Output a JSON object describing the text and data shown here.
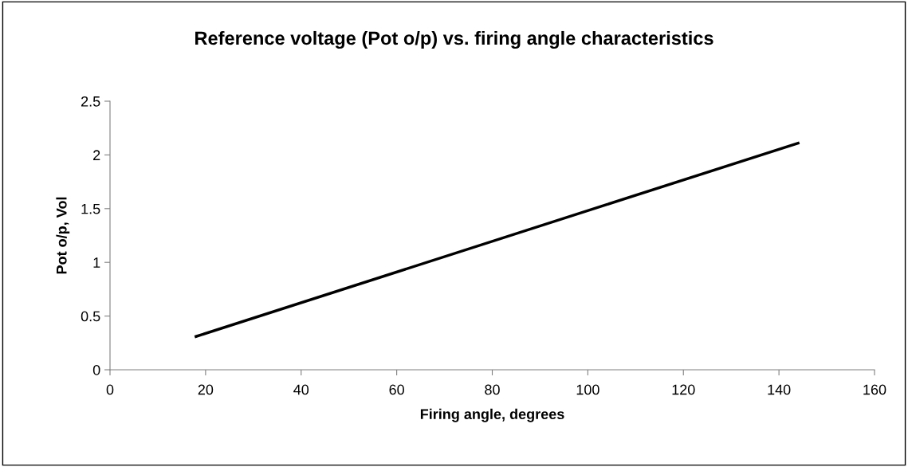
{
  "chart_data": {
    "type": "line",
    "title": "Reference voltage (Pot o/p) vs. firing angle characteristics",
    "xlabel": "Firing angle, degrees",
    "ylabel": "Pot o/p, Vol",
    "x": [
      18,
      144
    ],
    "series": [
      {
        "color": "#000000",
        "values": [
          0.31,
          2.11
        ]
      }
    ],
    "xlim": [
      0,
      160
    ],
    "xticks": [
      0,
      20,
      40,
      60,
      80,
      100,
      120,
      140,
      160
    ],
    "ylim": [
      0,
      2.5
    ],
    "yticks": [
      0,
      0.5,
      1,
      1.5,
      2,
      2.5
    ],
    "grid": false,
    "marker": "none",
    "line_style": "solid"
  }
}
